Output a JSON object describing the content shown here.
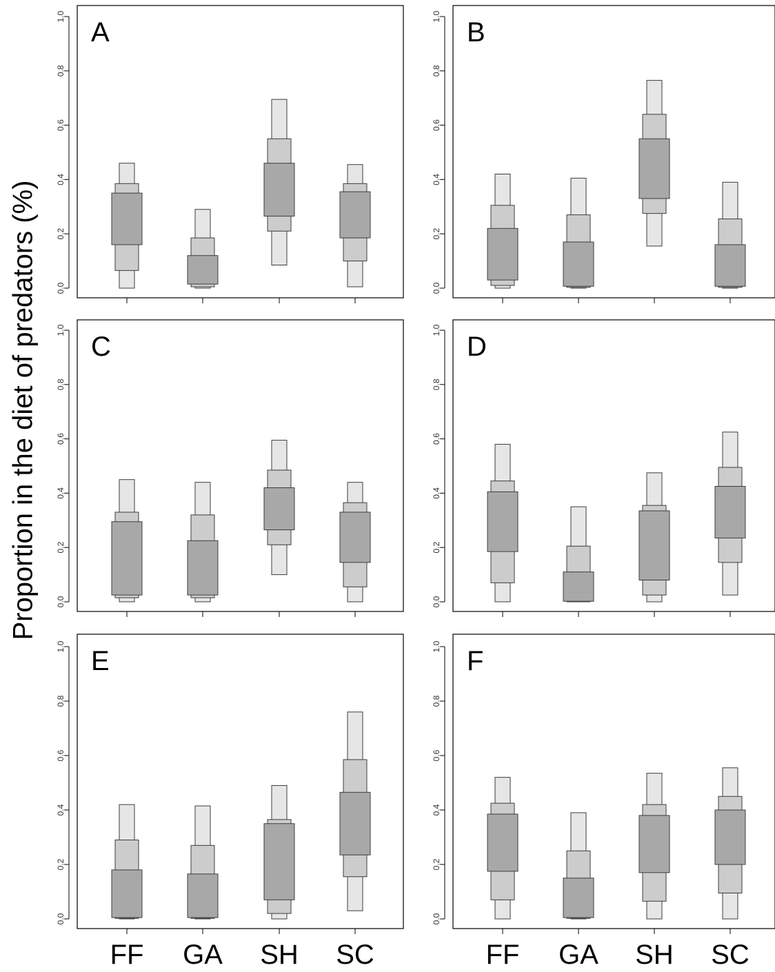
{
  "ylabel": "Proportion in the diet of predators (%)",
  "chart_data": {
    "type": "box",
    "description_of_marks": "Stacked credibility-interval boxes per prey group: outer (light) 95%, middle 75%, inner (dark) 50%",
    "categories": [
      "FF",
      "GA",
      "SH",
      "SC"
    ],
    "ylim": [
      0,
      1
    ],
    "yticks": [
      "0.0",
      "0.2",
      "0.4",
      "0.6",
      "0.8",
      "1.0"
    ],
    "ylabel": "Proportion in the diet of predators (%)",
    "colors": {
      "ci95": "#e6e6e6",
      "ci75": "#cccccc",
      "ci50": "#a8a8a8",
      "stroke": "#3c3c3c"
    },
    "panels": [
      {
        "label": "A",
        "series": [
          {
            "category": "FF",
            "ci95": [
              0.0,
              0.46
            ],
            "ci75": [
              0.065,
              0.385
            ],
            "ci50": [
              0.16,
              0.35
            ]
          },
          {
            "category": "GA",
            "ci95": [
              0.0,
              0.29
            ],
            "ci75": [
              0.005,
              0.185
            ],
            "ci50": [
              0.015,
              0.12
            ]
          },
          {
            "category": "SH",
            "ci95": [
              0.085,
              0.695
            ],
            "ci75": [
              0.21,
              0.55
            ],
            "ci50": [
              0.265,
              0.46
            ]
          },
          {
            "category": "SC",
            "ci95": [
              0.005,
              0.455
            ],
            "ci75": [
              0.1,
              0.385
            ],
            "ci50": [
              0.185,
              0.355
            ]
          }
        ]
      },
      {
        "label": "B",
        "series": [
          {
            "category": "FF",
            "ci95": [
              0.0,
              0.42
            ],
            "ci75": [
              0.01,
              0.305
            ],
            "ci50": [
              0.03,
              0.22
            ]
          },
          {
            "category": "GA",
            "ci95": [
              0.0,
              0.405
            ],
            "ci75": [
              0.003,
              0.27
            ],
            "ci50": [
              0.007,
              0.17
            ]
          },
          {
            "category": "SH",
            "ci95": [
              0.155,
              0.765
            ],
            "ci75": [
              0.275,
              0.64
            ],
            "ci50": [
              0.33,
              0.55
            ]
          },
          {
            "category": "SC",
            "ci95": [
              0.0,
              0.39
            ],
            "ci75": [
              0.003,
              0.255
            ],
            "ci50": [
              0.007,
              0.16
            ]
          }
        ]
      },
      {
        "label": "C",
        "series": [
          {
            "category": "FF",
            "ci95": [
              0.0,
              0.45
            ],
            "ci75": [
              0.015,
              0.33
            ],
            "ci50": [
              0.025,
              0.295
            ]
          },
          {
            "category": "GA",
            "ci95": [
              0.0,
              0.44
            ],
            "ci75": [
              0.015,
              0.32
            ],
            "ci50": [
              0.025,
              0.225
            ]
          },
          {
            "category": "SH",
            "ci95": [
              0.1,
              0.595
            ],
            "ci75": [
              0.21,
              0.485
            ],
            "ci50": [
              0.265,
              0.42
            ]
          },
          {
            "category": "SC",
            "ci95": [
              0.0,
              0.44
            ],
            "ci75": [
              0.055,
              0.365
            ],
            "ci50": [
              0.145,
              0.33
            ]
          }
        ]
      },
      {
        "label": "D",
        "series": [
          {
            "category": "FF",
            "ci95": [
              0.0,
              0.58
            ],
            "ci75": [
              0.07,
              0.445
            ],
            "ci50": [
              0.185,
              0.405
            ]
          },
          {
            "category": "GA",
            "ci95": [
              0.0,
              0.35
            ],
            "ci75": [
              0.0,
              0.205
            ],
            "ci50": [
              0.002,
              0.11
            ]
          },
          {
            "category": "SH",
            "ci95": [
              0.0,
              0.475
            ],
            "ci75": [
              0.025,
              0.355
            ],
            "ci50": [
              0.08,
              0.335
            ]
          },
          {
            "category": "SC",
            "ci95": [
              0.025,
              0.625
            ],
            "ci75": [
              0.145,
              0.495
            ],
            "ci50": [
              0.235,
              0.425
            ]
          }
        ]
      },
      {
        "label": "E",
        "series": [
          {
            "category": "FF",
            "ci95": [
              0.0,
              0.42
            ],
            "ci75": [
              0.002,
              0.29
            ],
            "ci50": [
              0.005,
              0.18
            ]
          },
          {
            "category": "GA",
            "ci95": [
              0.0,
              0.415
            ],
            "ci75": [
              0.002,
              0.27
            ],
            "ci50": [
              0.005,
              0.165
            ]
          },
          {
            "category": "SH",
            "ci95": [
              0.0,
              0.49
            ],
            "ci75": [
              0.02,
              0.365
            ],
            "ci50": [
              0.07,
              0.35
            ]
          },
          {
            "category": "SC",
            "ci95": [
              0.03,
              0.76
            ],
            "ci75": [
              0.155,
              0.585
            ],
            "ci50": [
              0.235,
              0.465
            ]
          }
        ]
      },
      {
        "label": "F",
        "series": [
          {
            "category": "FF",
            "ci95": [
              0.0,
              0.52
            ],
            "ci75": [
              0.07,
              0.425
            ],
            "ci50": [
              0.175,
              0.385
            ]
          },
          {
            "category": "GA",
            "ci95": [
              0.0,
              0.39
            ],
            "ci75": [
              0.002,
              0.25
            ],
            "ci50": [
              0.005,
              0.15
            ]
          },
          {
            "category": "SH",
            "ci95": [
              0.0,
              0.535
            ],
            "ci75": [
              0.065,
              0.42
            ],
            "ci50": [
              0.17,
              0.38
            ]
          },
          {
            "category": "SC",
            "ci95": [
              0.0,
              0.555
            ],
            "ci75": [
              0.095,
              0.45
            ],
            "ci50": [
              0.2,
              0.4
            ]
          }
        ]
      }
    ]
  }
}
